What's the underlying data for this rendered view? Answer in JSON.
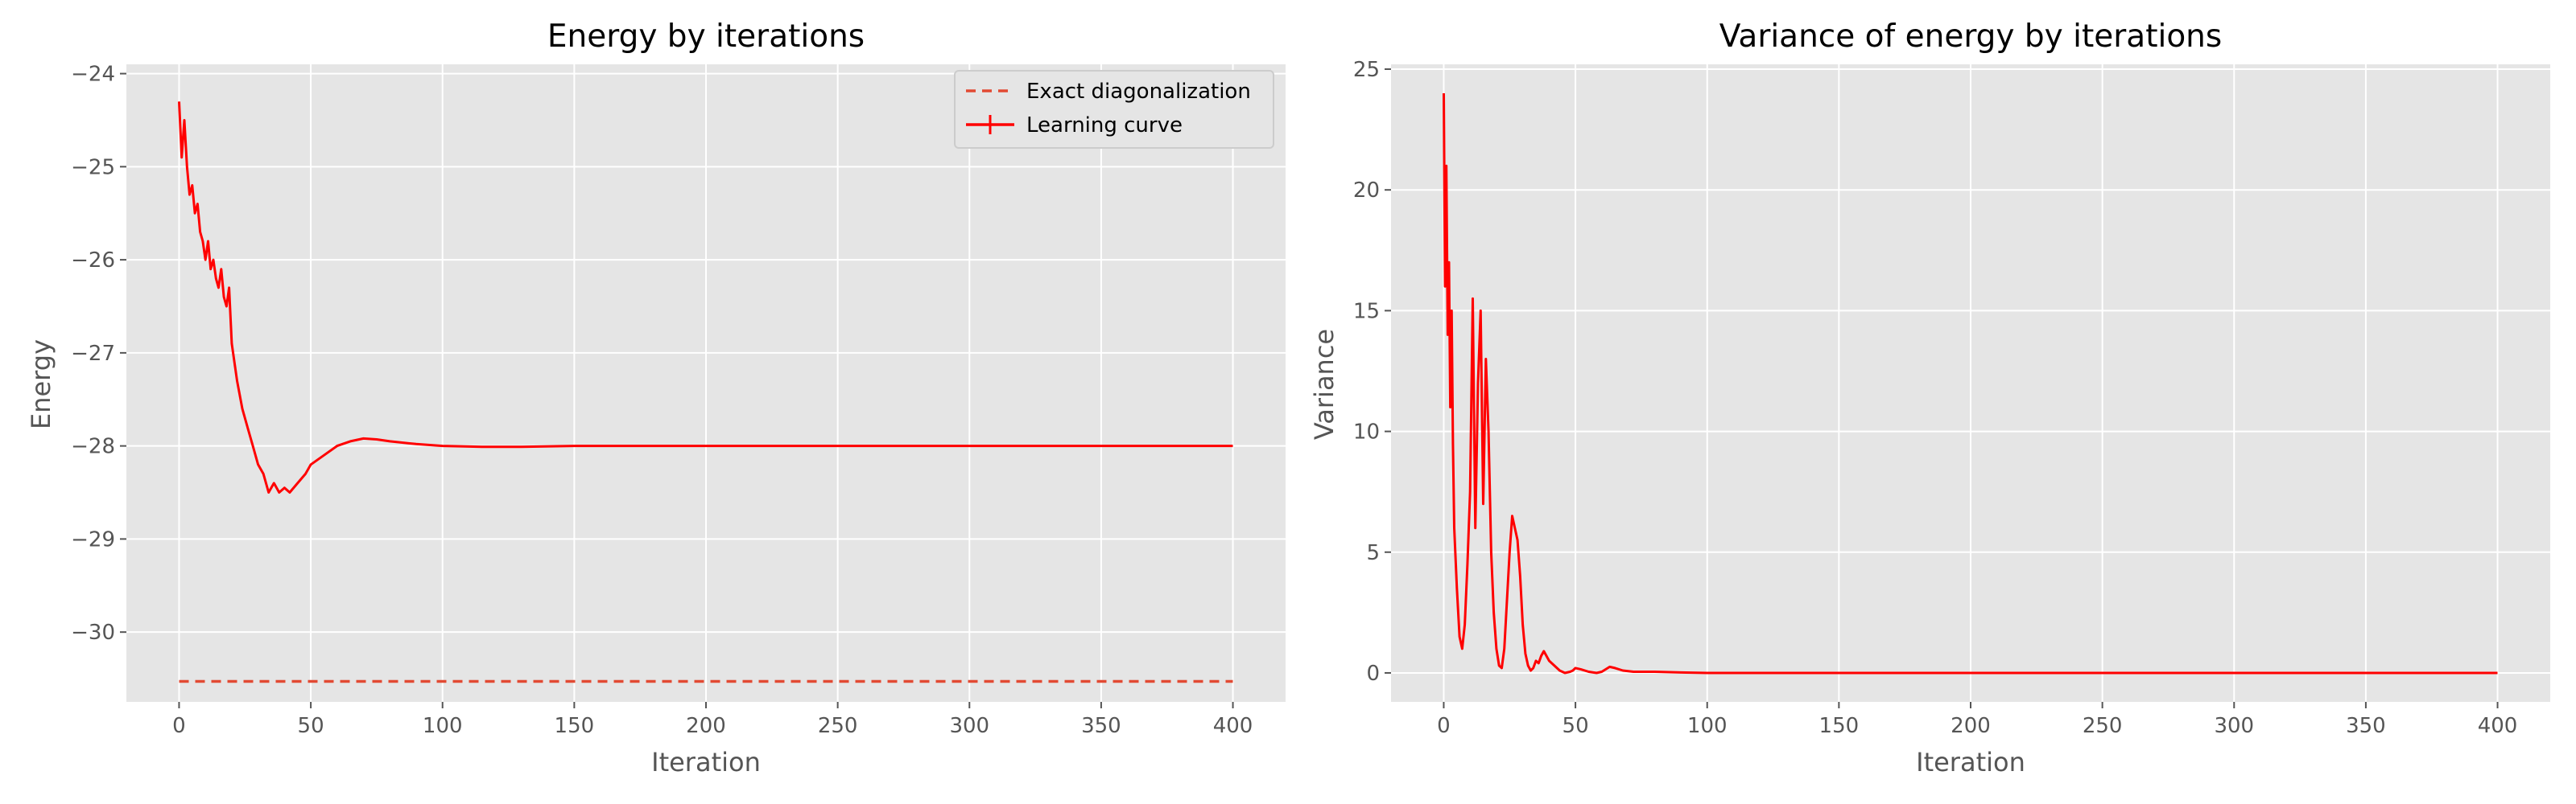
{
  "chart_data": [
    {
      "type": "line",
      "title": "Energy by iterations",
      "xlabel": "Iteration",
      "ylabel": "Energy",
      "xlim": [
        -20,
        420
      ],
      "ylim": [
        -30.75,
        -23.9
      ],
      "xticks": [
        0,
        50,
        100,
        150,
        200,
        250,
        300,
        350,
        400
      ],
      "yticks": [
        -30,
        -29,
        -28,
        -27,
        -26,
        -25,
        -24
      ],
      "grid": true,
      "legend": "top-right",
      "series": [
        {
          "name": "Exact diagonalization",
          "style": "dashed",
          "color": "#e24a33",
          "x": [
            0,
            400
          ],
          "y": [
            -30.53,
            -30.53
          ]
        },
        {
          "name": "Learning curve",
          "style": "solid-errorbar",
          "color": "#ff0000",
          "x": [
            0,
            1,
            2,
            3,
            4,
            5,
            6,
            7,
            8,
            9,
            10,
            11,
            12,
            13,
            14,
            15,
            16,
            17,
            18,
            19,
            20,
            22,
            24,
            26,
            28,
            30,
            32,
            34,
            36,
            38,
            40,
            42,
            45,
            48,
            50,
            55,
            60,
            65,
            70,
            75,
            80,
            90,
            100,
            115,
            130,
            150,
            200,
            250,
            300,
            350,
            400
          ],
          "y": [
            -24.3,
            -24.9,
            -24.5,
            -25.0,
            -25.3,
            -25.2,
            -25.5,
            -25.4,
            -25.7,
            -25.8,
            -26.0,
            -25.8,
            -26.1,
            -26.0,
            -26.2,
            -26.3,
            -26.1,
            -26.4,
            -26.5,
            -26.3,
            -26.9,
            -27.3,
            -27.6,
            -27.8,
            -28.0,
            -28.2,
            -28.3,
            -28.5,
            -28.4,
            -28.5,
            -28.45,
            -28.5,
            -28.4,
            -28.3,
            -28.2,
            -28.1,
            -28.0,
            -27.95,
            -27.92,
            -27.93,
            -27.95,
            -27.98,
            -28.0,
            -28.01,
            -28.01,
            -28.0,
            -28.0,
            -28.0,
            -28.0,
            -28.0,
            -28.0
          ]
        }
      ]
    },
    {
      "type": "line",
      "title": "Variance of energy by iterations",
      "xlabel": "Iteration",
      "ylabel": "Variance",
      "xlim": [
        -20,
        420
      ],
      "ylim": [
        -1.2,
        25.2
      ],
      "xticks": [
        0,
        50,
        100,
        150,
        200,
        250,
        300,
        350,
        400
      ],
      "yticks": [
        0,
        5,
        10,
        15,
        20,
        25
      ],
      "grid": true,
      "series": [
        {
          "name": "",
          "style": "solid-errorbar",
          "color": "#ff0000",
          "x": [
            0,
            0.5,
            1,
            1.5,
            2,
            2.5,
            3,
            3.5,
            4,
            5,
            6,
            7,
            8,
            9,
            10,
            11,
            12,
            13,
            14,
            15,
            16,
            17,
            18,
            19,
            20,
            21,
            22,
            23,
            24,
            25,
            26,
            27,
            28,
            29,
            30,
            31,
            32,
            33,
            34,
            35,
            36,
            37,
            38,
            40,
            42,
            44,
            46,
            48,
            49,
            50,
            52,
            55,
            58,
            60,
            63,
            65,
            68,
            72,
            80,
            90,
            100,
            150,
            200,
            300,
            400
          ],
          "y": [
            24.0,
            16.0,
            21.0,
            14.0,
            17.0,
            11.0,
            15.0,
            9.5,
            6.0,
            3.5,
            1.5,
            1.0,
            2.0,
            4.5,
            7.5,
            15.5,
            6.0,
            12.0,
            15.0,
            7.0,
            13.0,
            10.0,
            5.0,
            2.5,
            1.0,
            0.3,
            0.2,
            1.0,
            3.0,
            5.0,
            6.5,
            6.0,
            5.5,
            4.0,
            2.0,
            0.8,
            0.3,
            0.1,
            0.2,
            0.5,
            0.4,
            0.7,
            0.9,
            0.5,
            0.3,
            0.1,
            0.0,
            0.05,
            0.1,
            0.2,
            0.15,
            0.05,
            0.0,
            0.05,
            0.25,
            0.2,
            0.1,
            0.05,
            0.05,
            0.02,
            0.0,
            0.0,
            0.0,
            0.0,
            0.0
          ]
        }
      ]
    }
  ]
}
